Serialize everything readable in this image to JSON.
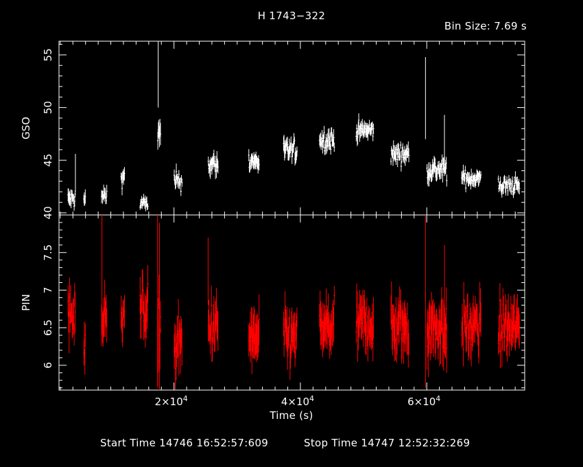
{
  "chart_data": {
    "type": "scatter",
    "title": "H 1743−322",
    "subtitle": "Bin Size: 7.69 s",
    "xlabel": "Time (s)",
    "xlim": [
      1800,
      75500
    ],
    "x_ticks": [
      {
        "value": 20000,
        "label": "2×10",
        "exp": "4"
      },
      {
        "value": 40000,
        "label": "4×10",
        "exp": "4"
      },
      {
        "value": 60000,
        "label": "6×10",
        "exp": "4"
      }
    ],
    "panels": [
      {
        "name": "gso",
        "ylabel": "GSO",
        "ylim": [
          39.8,
          56.3
        ],
        "y_ticks": [
          40,
          45,
          50,
          55
        ],
        "y_tick_labels": [
          "40",
          "45",
          "50",
          "55"
        ],
        "color": "#ffffff",
        "segments": [
          {
            "t0": 3200,
            "t1": 4400,
            "mean": 41.3,
            "err": 0.9
          },
          {
            "t0": 5700,
            "t1": 6000,
            "mean": 41.2,
            "err": 0.8
          },
          {
            "t0": 8500,
            "t1": 9400,
            "mean": 41.6,
            "err": 0.8
          },
          {
            "t0": 11600,
            "t1": 12200,
            "mean": 43.4,
            "err": 0.9
          },
          {
            "t0": 14600,
            "t1": 15900,
            "mean": 40.9,
            "err": 0.6
          },
          {
            "t0": 17400,
            "t1": 17900,
            "mean": 47.2,
            "err": 1.8
          },
          {
            "t0": 20000,
            "t1": 21300,
            "mean": 43.0,
            "err": 0.9
          },
          {
            "t0": 25400,
            "t1": 27000,
            "mean": 44.6,
            "err": 1.0
          },
          {
            "t0": 31800,
            "t1": 33500,
            "mean": 44.9,
            "err": 0.9
          },
          {
            "t0": 37300,
            "t1": 39500,
            "mean": 45.9,
            "err": 1.0
          },
          {
            "t0": 43000,
            "t1": 45400,
            "mean": 46.9,
            "err": 1.0
          },
          {
            "t0": 48800,
            "t1": 51600,
            "mean": 47.8,
            "err": 0.9
          },
          {
            "t0": 54300,
            "t1": 57200,
            "mean": 45.6,
            "err": 0.9
          },
          {
            "t0": 60000,
            "t1": 63200,
            "mean": 44.1,
            "err": 1.0
          },
          {
            "t0": 65500,
            "t1": 68600,
            "mean": 43.3,
            "err": 0.8
          },
          {
            "t0": 71300,
            "t1": 74700,
            "mean": 42.6,
            "err": 0.8
          }
        ],
        "spikes": [
          {
            "t": 4400,
            "low": 42.0,
            "high": 45.6
          },
          {
            "t": 17500,
            "low": 50.0,
            "high": 56.3
          },
          {
            "t": 59800,
            "low": 47.0,
            "high": 54.8
          },
          {
            "t": 62800,
            "low": 45.0,
            "high": 49.3
          }
        ]
      },
      {
        "name": "pin",
        "ylabel": "PIN",
        "ylim": [
          5.67,
          8.0
        ],
        "y_ticks": [
          6,
          6.5,
          7,
          7.5
        ],
        "y_tick_labels": [
          "6",
          "6.5",
          "7",
          "7.5"
        ],
        "color": "#ff0000",
        "segments": [
          {
            "t0": 3200,
            "t1": 4400,
            "mean": 6.65,
            "err": 0.35
          },
          {
            "t0": 5700,
            "t1": 6000,
            "mean": 6.3,
            "err": 0.3
          },
          {
            "t0": 8500,
            "t1": 9400,
            "mean": 6.6,
            "err": 0.35
          },
          {
            "t0": 11600,
            "t1": 12200,
            "mean": 6.75,
            "err": 0.3
          },
          {
            "t0": 14600,
            "t1": 15900,
            "mean": 6.75,
            "err": 0.35
          },
          {
            "t0": 17400,
            "t1": 17900,
            "mean": 6.4,
            "err": 0.6
          },
          {
            "t0": 20000,
            "t1": 21300,
            "mean": 6.25,
            "err": 0.4
          },
          {
            "t0": 25400,
            "t1": 27000,
            "mean": 6.5,
            "err": 0.35
          },
          {
            "t0": 31800,
            "t1": 33500,
            "mean": 6.35,
            "err": 0.4
          },
          {
            "t0": 37300,
            "t1": 39500,
            "mean": 6.35,
            "err": 0.35
          },
          {
            "t0": 43000,
            "t1": 45400,
            "mean": 6.5,
            "err": 0.35
          },
          {
            "t0": 48800,
            "t1": 51600,
            "mean": 6.55,
            "err": 0.35
          },
          {
            "t0": 54300,
            "t1": 57200,
            "mean": 6.5,
            "err": 0.4
          },
          {
            "t0": 60000,
            "t1": 63200,
            "mean": 6.5,
            "err": 0.4
          },
          {
            "t0": 65500,
            "t1": 68600,
            "mean": 6.5,
            "err": 0.35
          },
          {
            "t0": 71300,
            "t1": 74700,
            "mean": 6.5,
            "err": 0.35
          }
        ],
        "spikes": [
          {
            "t": 8600,
            "low": 6.4,
            "high": 8.0
          },
          {
            "t": 17400,
            "low": 5.7,
            "high": 8.0
          },
          {
            "t": 17700,
            "low": 6.0,
            "high": 7.9
          },
          {
            "t": 25400,
            "low": 6.8,
            "high": 7.7
          },
          {
            "t": 59800,
            "low": 5.7,
            "high": 8.0
          },
          {
            "t": 62800,
            "low": 6.2,
            "high": 7.6
          }
        ]
      }
    ],
    "grid": false
  },
  "footer": {
    "start_time": "Start Time 14746 16:52:57:609",
    "stop_time": "Stop Time 14747 12:52:32:269"
  }
}
